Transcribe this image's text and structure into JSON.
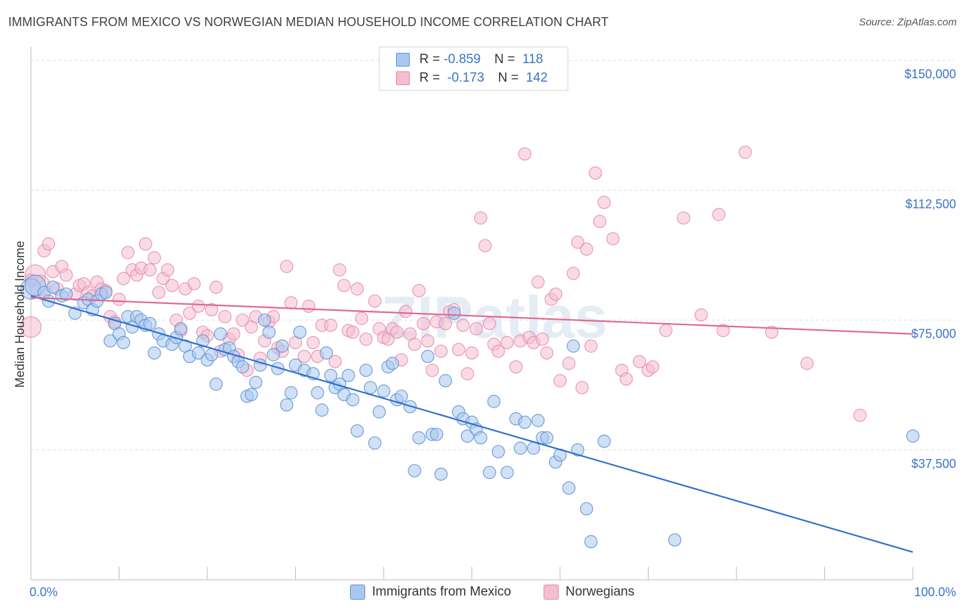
{
  "header": {
    "title": "IMMIGRANTS FROM MEXICO VS NORWEGIAN MEDIAN HOUSEHOLD INCOME CORRELATION CHART",
    "source": "Source: ZipAtlas.com"
  },
  "colors": {
    "blue_fill": "#aac8ef",
    "blue_stroke": "#5b8fd6",
    "blue_line": "#2f6fd0",
    "pink_fill": "#f5bdd0",
    "pink_stroke": "#e58aaa",
    "pink_line": "#e0688f",
    "tick_label": "#3a73c8",
    "grid": "#dddddd"
  },
  "legend": {
    "rows": [
      {
        "r_label": "R =",
        "r_value": "-0.859",
        "n_label": "N =",
        "n_value": "118"
      },
      {
        "r_label": "R =",
        "r_value": "-0.173",
        "n_label": "N =",
        "n_value": "142"
      }
    ]
  },
  "bottom_legend": [
    "Immigrants from Mexico",
    "Norwegians"
  ],
  "chart_data": {
    "type": "scatter",
    "title": "IMMIGRANTS FROM MEXICO VS NORWEGIAN MEDIAN HOUSEHOLD INCOME CORRELATION CHART",
    "xlabel": "",
    "ylabel": "Median Household Income",
    "xlim": [
      0,
      100
    ],
    "ylim": [
      0,
      152000
    ],
    "x_tick_labels": [
      "0.0%",
      "100.0%"
    ],
    "y_ticks": [
      {
        "value": 37500,
        "label": "$37,500"
      },
      {
        "value": 75000,
        "label": "$75,000"
      },
      {
        "value": 112500,
        "label": "$112,500"
      },
      {
        "value": 150000,
        "label": "$150,000"
      }
    ],
    "grid": true,
    "watermark": "ZIPatlas",
    "series": [
      {
        "name": "Immigrants from Mexico",
        "r": -0.859,
        "n": 118,
        "trend": {
          "x": [
            0,
            100
          ],
          "y": [
            82000,
            8000
          ]
        },
        "points": [
          [
            0,
            84000
          ],
          [
            0.5,
            85000
          ],
          [
            1.5,
            83000
          ],
          [
            2,
            80500
          ],
          [
            2.5,
            84500
          ],
          [
            3.5,
            82000
          ],
          [
            4,
            82500
          ],
          [
            5,
            77000
          ],
          [
            6,
            80000
          ],
          [
            6.5,
            81000
          ],
          [
            7,
            78000
          ],
          [
            7.5,
            80500
          ],
          [
            8,
            82500
          ],
          [
            8.5,
            83000
          ],
          [
            9,
            69000
          ],
          [
            9.5,
            74000
          ],
          [
            10,
            71000
          ],
          [
            10.5,
            68500
          ],
          [
            11,
            76000
          ],
          [
            11.5,
            73000
          ],
          [
            12,
            76000
          ],
          [
            12.5,
            75000
          ],
          [
            13,
            73500
          ],
          [
            13.5,
            74000
          ],
          [
            14,
            65500
          ],
          [
            14.5,
            71000
          ],
          [
            15,
            69000
          ],
          [
            16,
            68000
          ],
          [
            16.5,
            70000
          ],
          [
            17,
            72500
          ],
          [
            17.5,
            67500
          ],
          [
            18,
            64500
          ],
          [
            19,
            65500
          ],
          [
            19.5,
            69000
          ],
          [
            20,
            63500
          ],
          [
            20.5,
            65000
          ],
          [
            21,
            56500
          ],
          [
            21.5,
            71000
          ],
          [
            22,
            66500
          ],
          [
            22.5,
            67000
          ],
          [
            23,
            64500
          ],
          [
            23.5,
            63000
          ],
          [
            24,
            61500
          ],
          [
            24.5,
            53000
          ],
          [
            25,
            53500
          ],
          [
            25.5,
            57000
          ],
          [
            26,
            62000
          ],
          [
            26.5,
            75000
          ],
          [
            27,
            71500
          ],
          [
            27.5,
            65000
          ],
          [
            28,
            61000
          ],
          [
            28.5,
            67500
          ],
          [
            29,
            50500
          ],
          [
            29.5,
            54000
          ],
          [
            30,
            62000
          ],
          [
            30.5,
            71500
          ],
          [
            31,
            60500
          ],
          [
            32,
            59500
          ],
          [
            32.5,
            54000
          ],
          [
            33,
            49000
          ],
          [
            33.5,
            65500
          ],
          [
            34,
            59000
          ],
          [
            34.5,
            55500
          ],
          [
            35,
            56500
          ],
          [
            35.5,
            53500
          ],
          [
            36,
            59000
          ],
          [
            36.5,
            52000
          ],
          [
            37,
            43000
          ],
          [
            38,
            60500
          ],
          [
            38.5,
            55500
          ],
          [
            39,
            39500
          ],
          [
            39.5,
            48500
          ],
          [
            40,
            54500
          ],
          [
            40.5,
            61500
          ],
          [
            41,
            62500
          ],
          [
            41.5,
            52000
          ],
          [
            42,
            53000
          ],
          [
            43,
            50000
          ],
          [
            43.5,
            31500
          ],
          [
            44,
            41000
          ],
          [
            45,
            64500
          ],
          [
            45.5,
            42000
          ],
          [
            46,
            42000
          ],
          [
            46.5,
            30500
          ],
          [
            47,
            57500
          ],
          [
            48,
            77000
          ],
          [
            48.5,
            48500
          ],
          [
            49,
            46500
          ],
          [
            49.5,
            41500
          ],
          [
            50,
            45500
          ],
          [
            50.5,
            43500
          ],
          [
            51,
            41000
          ],
          [
            52,
            31000
          ],
          [
            52.5,
            51500
          ],
          [
            53,
            37000
          ],
          [
            54,
            31000
          ],
          [
            55,
            46500
          ],
          [
            55.5,
            38000
          ],
          [
            56,
            45500
          ],
          [
            57,
            38000
          ],
          [
            57.5,
            46000
          ],
          [
            58,
            41000
          ],
          [
            58.5,
            41000
          ],
          [
            59.5,
            34000
          ],
          [
            60,
            36000
          ],
          [
            61,
            26500
          ],
          [
            61.5,
            67500
          ],
          [
            62,
            37500
          ],
          [
            63,
            20500
          ],
          [
            63.5,
            11000
          ],
          [
            65,
            40000
          ],
          [
            73,
            11500
          ],
          [
            100,
            41500
          ]
        ]
      },
      {
        "name": "Norwegians",
        "r": -0.173,
        "n": 142,
        "trend": {
          "x": [
            0,
            100
          ],
          "y": [
            81500,
            71000
          ]
        },
        "points": [
          [
            0,
            73000
          ],
          [
            0.5,
            88000
          ],
          [
            1,
            85000
          ],
          [
            1.5,
            95000
          ],
          [
            2,
            97000
          ],
          [
            2.5,
            89000
          ],
          [
            3,
            84000
          ],
          [
            3.5,
            90500
          ],
          [
            4,
            88000
          ],
          [
            5,
            82500
          ],
          [
            5.5,
            85000
          ],
          [
            6,
            85500
          ],
          [
            6.5,
            83000
          ],
          [
            7,
            82000
          ],
          [
            7.5,
            86000
          ],
          [
            8,
            84000
          ],
          [
            8.5,
            83500
          ],
          [
            9,
            76000
          ],
          [
            9.5,
            74500
          ],
          [
            10,
            81000
          ],
          [
            10.5,
            87000
          ],
          [
            11,
            94500
          ],
          [
            11.5,
            89500
          ],
          [
            12,
            88000
          ],
          [
            12.5,
            90000
          ],
          [
            13,
            97000
          ],
          [
            13.5,
            89500
          ],
          [
            14,
            93000
          ],
          [
            14.5,
            83000
          ],
          [
            15,
            87000
          ],
          [
            15.5,
            89500
          ],
          [
            16,
            85000
          ],
          [
            16.5,
            75000
          ],
          [
            17,
            72000
          ],
          [
            17.5,
            84000
          ],
          [
            18,
            77000
          ],
          [
            18.5,
            85500
          ],
          [
            19,
            79000
          ],
          [
            19.5,
            71500
          ],
          [
            20,
            70500
          ],
          [
            20.5,
            78000
          ],
          [
            21,
            84500
          ],
          [
            21.5,
            66000
          ],
          [
            22,
            76000
          ],
          [
            22.5,
            69500
          ],
          [
            23,
            71000
          ],
          [
            23.5,
            65000
          ],
          [
            24,
            75000
          ],
          [
            24.5,
            60500
          ],
          [
            25,
            73000
          ],
          [
            25.5,
            76000
          ],
          [
            26,
            64000
          ],
          [
            26.5,
            69000
          ],
          [
            27,
            74500
          ],
          [
            27.5,
            76000
          ],
          [
            28,
            67000
          ],
          [
            28.5,
            66000
          ],
          [
            29,
            90500
          ],
          [
            29.5,
            80000
          ],
          [
            30,
            68500
          ],
          [
            31,
            64500
          ],
          [
            31.5,
            79000
          ],
          [
            32,
            68500
          ],
          [
            32.5,
            64500
          ],
          [
            33,
            73500
          ],
          [
            34,
            73500
          ],
          [
            34.5,
            63000
          ],
          [
            35,
            89500
          ],
          [
            35.5,
            85000
          ],
          [
            36,
            72000
          ],
          [
            36.5,
            71500
          ],
          [
            37,
            84000
          ],
          [
            37.5,
            75500
          ],
          [
            38,
            69500
          ],
          [
            39,
            80500
          ],
          [
            39.5,
            72500
          ],
          [
            40,
            70000
          ],
          [
            40.5,
            69500
          ],
          [
            41,
            72500
          ],
          [
            41.5,
            71500
          ],
          [
            42,
            63500
          ],
          [
            42.5,
            77500
          ],
          [
            43,
            71000
          ],
          [
            43.5,
            68000
          ],
          [
            44,
            83500
          ],
          [
            44.5,
            74000
          ],
          [
            45,
            69000
          ],
          [
            45.5,
            60500
          ],
          [
            46,
            74500
          ],
          [
            46.5,
            66000
          ],
          [
            47,
            74000
          ],
          [
            47.5,
            77500
          ],
          [
            48,
            78000
          ],
          [
            48.5,
            66500
          ],
          [
            49,
            73500
          ],
          [
            49.5,
            59500
          ],
          [
            50,
            65500
          ],
          [
            50.5,
            72500
          ],
          [
            51,
            104500
          ],
          [
            51.5,
            96500
          ],
          [
            52,
            74000
          ],
          [
            52.5,
            68000
          ],
          [
            53,
            66000
          ],
          [
            54,
            68500
          ],
          [
            55,
            61500
          ],
          [
            55.5,
            69000
          ],
          [
            56,
            123000
          ],
          [
            56.5,
            70000
          ],
          [
            57,
            68500
          ],
          [
            57.5,
            86000
          ],
          [
            58,
            69500
          ],
          [
            58.5,
            65500
          ],
          [
            59,
            81000
          ],
          [
            59.5,
            82500
          ],
          [
            60,
            57500
          ],
          [
            61,
            62500
          ],
          [
            61.5,
            88500
          ],
          [
            62,
            97500
          ],
          [
            62.5,
            55500
          ],
          [
            63,
            95500
          ],
          [
            63.5,
            67500
          ],
          [
            64,
            117500
          ],
          [
            64.5,
            103500
          ],
          [
            65,
            109000
          ],
          [
            66,
            98500
          ],
          [
            67,
            60500
          ],
          [
            67.5,
            58000
          ],
          [
            69,
            63000
          ],
          [
            70,
            60500
          ],
          [
            70.5,
            61500
          ],
          [
            72,
            72000
          ],
          [
            74,
            104500
          ],
          [
            76,
            76500
          ],
          [
            78,
            105500
          ],
          [
            78.5,
            72000
          ],
          [
            81,
            123500
          ],
          [
            84,
            71500
          ],
          [
            88,
            62500
          ],
          [
            94,
            47500
          ],
          [
            0,
            86500
          ]
        ]
      }
    ]
  }
}
